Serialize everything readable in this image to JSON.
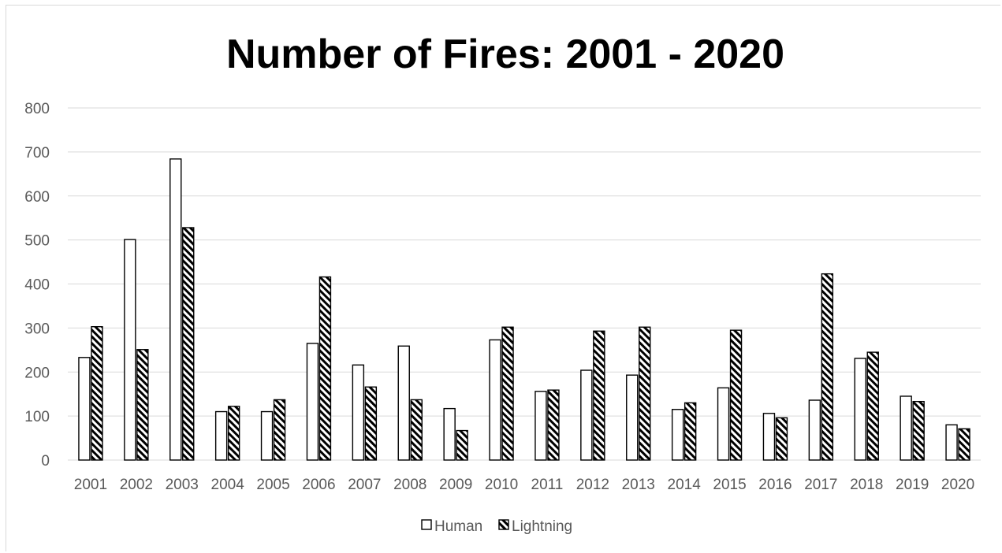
{
  "chart_data": {
    "type": "bar",
    "title": "Number of Fires: 2001 - 2020",
    "xlabel": "",
    "ylabel": "",
    "ylim": [
      0,
      800
    ],
    "yticks": [
      "0",
      "100",
      "200",
      "300",
      "400",
      "500",
      "600",
      "700",
      "800"
    ],
    "grid": true,
    "legend_position": "bottom",
    "categories": [
      "2001",
      "2002",
      "2003",
      "2004",
      "2005",
      "2006",
      "2007",
      "2008",
      "2009",
      "2010",
      "2011",
      "2012",
      "2013",
      "2014",
      "2015",
      "2016",
      "2017",
      "2018",
      "2019",
      "2020"
    ],
    "series": [
      {
        "name": "Human",
        "pattern": "solid-white",
        "values": [
          233,
          501,
          684,
          110,
          110,
          265,
          216,
          259,
          117,
          273,
          156,
          204,
          193,
          115,
          164,
          106,
          136,
          231,
          145,
          80
        ]
      },
      {
        "name": "Lightning",
        "pattern": "diagonal-hatch",
        "values": [
          303,
          251,
          528,
          122,
          137,
          416,
          166,
          137,
          67,
          302,
          159,
          293,
          302,
          130,
          295,
          96,
          423,
          245,
          133,
          71
        ]
      }
    ],
    "colors": {
      "outline": "#000000",
      "fill": "#ffffff",
      "grid": "#d9d9d9",
      "text": "#595959"
    }
  }
}
